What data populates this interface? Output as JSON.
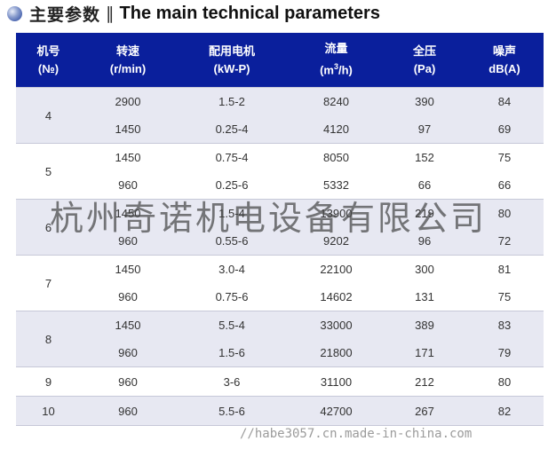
{
  "heading": {
    "zh": "主要参数",
    "separator": "‖",
    "en": "The main technical parameters"
  },
  "columns": [
    {
      "zh": "机号",
      "unit": "(№)"
    },
    {
      "zh": "转速",
      "unit": "(r/min)"
    },
    {
      "zh": "配用电机",
      "unit": "(kW-P)"
    },
    {
      "zh": "流量",
      "unit_pre": "(m",
      "unit_sup": "3",
      "unit_post": "/h)"
    },
    {
      "zh": "全压",
      "unit": "(Pa)"
    },
    {
      "zh": "噪声",
      "unit": "dB(A)"
    }
  ],
  "groups": [
    {
      "model": "4",
      "rows": [
        {
          "speed": "2900",
          "motor": "1.5-2",
          "flow": "8240",
          "pressure": "390",
          "noise": "84"
        },
        {
          "speed": "1450",
          "motor": "0.25-4",
          "flow": "4120",
          "pressure": "97",
          "noise": "69"
        }
      ]
    },
    {
      "model": "5",
      "rows": [
        {
          "speed": "1450",
          "motor": "0.75-4",
          "flow": "8050",
          "pressure": "152",
          "noise": "75"
        },
        {
          "speed": "960",
          "motor": "0.25-6",
          "flow": "5332",
          "pressure": "66",
          "noise": "66"
        }
      ]
    },
    {
      "model": "6",
      "rows": [
        {
          "speed": "1450",
          "motor": "1.5-4",
          "flow": "13900",
          "pressure": "219",
          "noise": "80"
        },
        {
          "speed": "960",
          "motor": "0.55-6",
          "flow": "9202",
          "pressure": "96",
          "noise": "72"
        }
      ]
    },
    {
      "model": "7",
      "rows": [
        {
          "speed": "1450",
          "motor": "3.0-4",
          "flow": "22100",
          "pressure": "300",
          "noise": "81"
        },
        {
          "speed": "960",
          "motor": "0.75-6",
          "flow": "14602",
          "pressure": "131",
          "noise": "75"
        }
      ]
    },
    {
      "model": "8",
      "rows": [
        {
          "speed": "1450",
          "motor": "5.5-4",
          "flow": "33000",
          "pressure": "389",
          "noise": "83"
        },
        {
          "speed": "960",
          "motor": "1.5-6",
          "flow": "21800",
          "pressure": "171",
          "noise": "79"
        }
      ]
    },
    {
      "model": "9",
      "rows": [
        {
          "speed": "960",
          "motor": "3-6",
          "flow": "31100",
          "pressure": "212",
          "noise": "80"
        }
      ]
    },
    {
      "model": "10",
      "rows": [
        {
          "speed": "960",
          "motor": "5.5-6",
          "flow": "42700",
          "pressure": "267",
          "noise": "82"
        }
      ]
    }
  ],
  "watermark": "杭州奇诺机电设备有限公司",
  "footer_watermark": "//habe3057.cn.made-in-china.com",
  "colors": {
    "header_bg": "#0a1f9c",
    "shaded_row": "#e7e8f2",
    "bullet": "#1f3f99"
  }
}
